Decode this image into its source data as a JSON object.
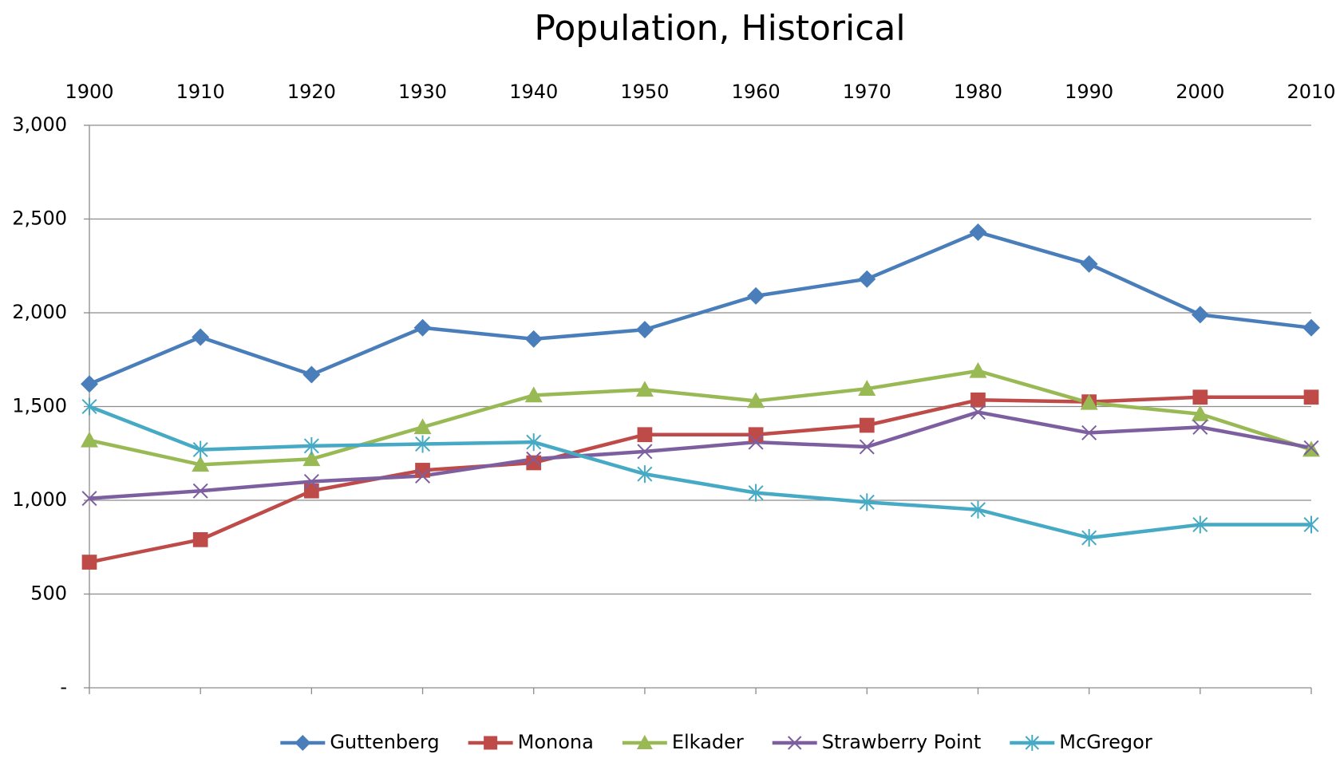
{
  "chart_data": {
    "type": "line",
    "title": "Population, Historical",
    "x": [
      1900,
      1910,
      1920,
      1930,
      1940,
      1950,
      1960,
      1970,
      1980,
      1990,
      2000,
      2010
    ],
    "xlim": [
      1900,
      2010
    ],
    "xticks": [
      1900,
      1910,
      1920,
      1930,
      1940,
      1950,
      1960,
      1970,
      1980,
      1990,
      2000,
      2010
    ],
    "ylim": [
      0,
      3000
    ],
    "yticks": [
      {
        "value": 0,
        "label": "-"
      },
      500,
      {
        "value": 1000,
        "label": "1,000"
      },
      {
        "value": 1500,
        "label": "1,500"
      },
      {
        "value": 2000,
        "label": "2,000"
      },
      {
        "value": 2500,
        "label": "2,500"
      },
      {
        "value": 3000,
        "label": "3,000"
      }
    ],
    "grid": true,
    "legend": "bottom",
    "series": [
      {
        "name": "Guttenberg",
        "color": "#4a7ebb",
        "marker": "diamond",
        "values": [
          1620,
          1870,
          1670,
          1920,
          1860,
          1910,
          2090,
          2180,
          2430,
          2260,
          1990,
          1920
        ]
      },
      {
        "name": "Monona",
        "color": "#be4b48",
        "marker": "square",
        "values": [
          670,
          790,
          1050,
          1160,
          1200,
          1350,
          1350,
          1400,
          1535,
          1525,
          1550,
          1550
        ]
      },
      {
        "name": "Elkader",
        "color": "#98b954",
        "marker": "triangle",
        "values": [
          1320,
          1190,
          1220,
          1390,
          1560,
          1590,
          1530,
          1595,
          1690,
          1520,
          1460,
          1270
        ]
      },
      {
        "name": "Strawberry Point",
        "color": "#7d5fa0",
        "marker": "x",
        "values": [
          1010,
          1050,
          1100,
          1130,
          1220,
          1260,
          1310,
          1285,
          1470,
          1360,
          1390,
          1280
        ]
      },
      {
        "name": "McGregor",
        "color": "#46aac5",
        "marker": "star",
        "values": [
          1500,
          1270,
          1290,
          1300,
          1310,
          1140,
          1040,
          990,
          950,
          800,
          870,
          870
        ]
      }
    ]
  }
}
